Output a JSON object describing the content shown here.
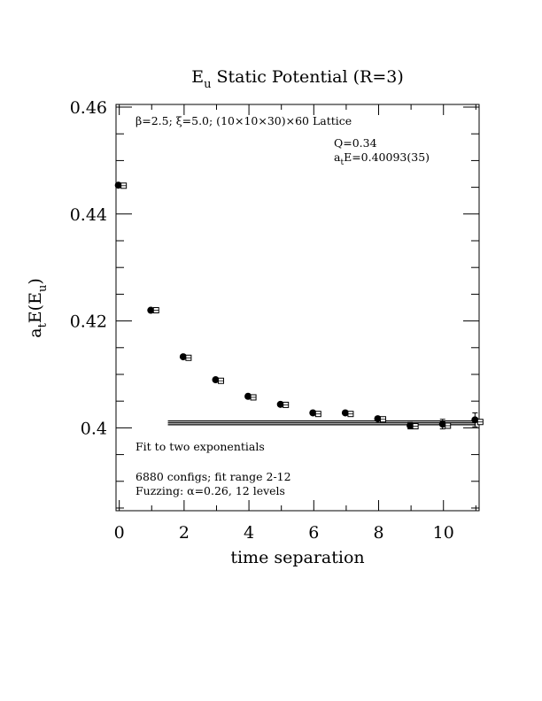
{
  "chart_data": {
    "type": "scatter",
    "title": "E",
    "title_sub": "u",
    "title_rest": " Static Potential (R=3)",
    "xlabel": "time separation",
    "ylabel": "a",
    "ylabel_sub": "t",
    "ylabel_mid": "E(E",
    "ylabel_sub2": "u",
    "ylabel_end": ")",
    "xlim": [
      -0.1,
      11.1
    ],
    "ylim": [
      0.3845,
      0.4605
    ],
    "x_ticks": [
      0,
      2,
      4,
      6,
      8,
      10
    ],
    "x_tick_labels": [
      "0",
      "2",
      "4",
      "6",
      "8",
      "10"
    ],
    "y_ticks": [
      0.4,
      0.42,
      0.44,
      0.46
    ],
    "y_tick_labels": [
      "0.4",
      "0.42",
      "0.44",
      "0.46"
    ],
    "grid": false,
    "series": [
      {
        "marker": "filled-circle",
        "x": [
          0,
          1,
          2,
          3,
          4,
          5,
          6,
          7,
          8,
          9,
          10,
          11
        ],
        "y": [
          0.4454,
          0.422,
          0.4133,
          0.409,
          0.4059,
          0.4044,
          0.4028,
          0.4028,
          0.4017,
          0.4004,
          0.4007,
          0.4015
        ],
        "err": [
          0.0002,
          0.0002,
          0.0002,
          0.0002,
          0.0002,
          0.0002,
          0.0003,
          0.0003,
          0.0004,
          0.0006,
          0.0009,
          0.0013
        ]
      },
      {
        "marker": "open-square",
        "x": [
          0,
          1,
          2,
          3,
          4,
          5,
          6,
          7,
          8,
          9,
          10,
          11
        ],
        "y": [
          0.4453,
          0.422,
          0.4131,
          0.4088,
          0.4057,
          0.4043,
          0.4026,
          0.4026,
          0.4016,
          0.4003,
          0.4004,
          0.4011
        ]
      }
    ],
    "fit": {
      "x_range": [
        1.5,
        11
      ],
      "center": 0.40093,
      "err": 0.00035
    },
    "annotations": {
      "lattice": "β=2.5; ξ=5.0; (10×10×30)×60 Lattice",
      "q": "Q=0.34",
      "ate_prefix": "a",
      "ate_sub": "t",
      "ate_rest": "E=0.40093(35)",
      "fit_label": "Fit to two exponentials",
      "configs": "6880 configs; fit range 2-12",
      "fuzzing": "Fuzzing: α=0.26, 12 levels"
    }
  }
}
